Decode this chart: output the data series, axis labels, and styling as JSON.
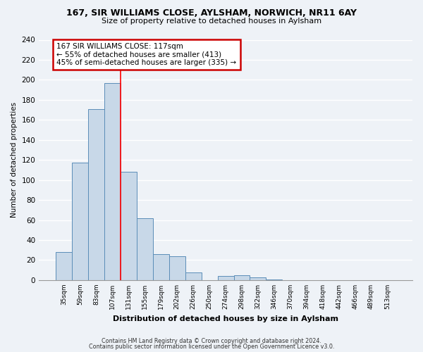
{
  "title": "167, SIR WILLIAMS CLOSE, AYLSHAM, NORWICH, NR11 6AY",
  "subtitle": "Size of property relative to detached houses in Aylsham",
  "xlabel": "Distribution of detached houses by size in Aylsham",
  "ylabel": "Number of detached properties",
  "bar_color": "#c8d8e8",
  "bar_edge_color": "#5b8db8",
  "bin_labels": [
    "35sqm",
    "59sqm",
    "83sqm",
    "107sqm",
    "131sqm",
    "155sqm",
    "179sqm",
    "202sqm",
    "226sqm",
    "250sqm",
    "274sqm",
    "298sqm",
    "322sqm",
    "346sqm",
    "370sqm",
    "394sqm",
    "418sqm",
    "442sqm",
    "466sqm",
    "489sqm",
    "513sqm"
  ],
  "bar_heights": [
    28,
    117,
    171,
    197,
    108,
    62,
    26,
    24,
    8,
    0,
    4,
    5,
    3,
    1,
    0,
    0,
    0,
    0,
    0,
    0,
    0
  ],
  "red_line_x": 3.5,
  "annotation_line1": "167 SIR WILLIAMS CLOSE: 117sqm",
  "annotation_line2": "← 55% of detached houses are smaller (413)",
  "annotation_line3": "45% of semi-detached houses are larger (335) →",
  "annotation_box_color": "#ffffff",
  "annotation_box_edge": "#cc0000",
  "ylim": [
    0,
    240
  ],
  "yticks": [
    0,
    20,
    40,
    60,
    80,
    100,
    120,
    140,
    160,
    180,
    200,
    220,
    240
  ],
  "footer1": "Contains HM Land Registry data © Crown copyright and database right 2024.",
  "footer2": "Contains public sector information licensed under the Open Government Licence v3.0.",
  "background_color": "#eef2f7",
  "grid_color": "#d8e0ea"
}
